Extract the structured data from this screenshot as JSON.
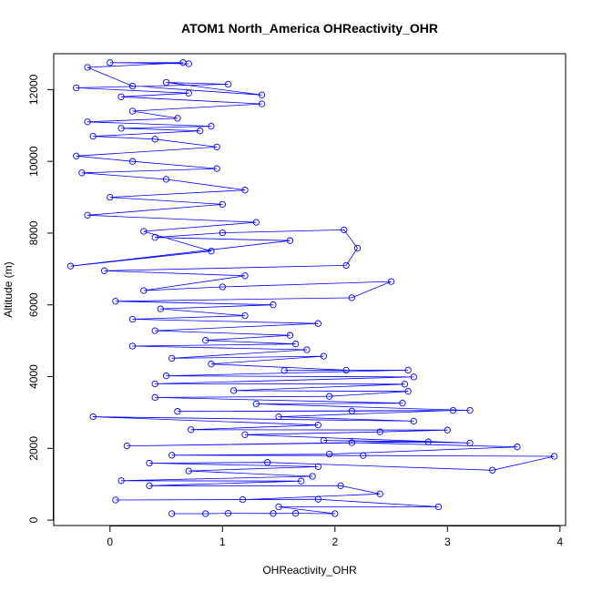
{
  "chart_data": {
    "type": "scatter",
    "title": "ATOM1 North_America OHReactivity_OHR",
    "xlabel": "OHReactivity_OHR",
    "ylabel": "Altitude (m)",
    "xlim": [
      -0.5,
      4.05
    ],
    "ylim": [
      -150,
      13000
    ],
    "x_ticks": [
      0,
      1,
      2,
      3,
      4
    ],
    "y_ticks": [
      0,
      2000,
      4000,
      6000,
      8000,
      10000,
      12000
    ],
    "grid": false,
    "series": [
      {
        "color": "#0000ff",
        "connected": true,
        "points": [
          [
            0.55,
            180
          ],
          [
            0.85,
            180
          ],
          [
            1.05,
            190
          ],
          [
            1.45,
            185
          ],
          [
            1.65,
            190
          ],
          [
            2.0,
            180
          ],
          [
            1.5,
            370
          ],
          [
            2.92,
            370
          ],
          [
            1.85,
            580
          ],
          [
            0.05,
            560
          ],
          [
            1.18,
            570
          ],
          [
            2.4,
            730
          ],
          [
            2.05,
            960
          ],
          [
            0.35,
            960
          ],
          [
            1.7,
            1090
          ],
          [
            0.1,
            1100
          ],
          [
            1.8,
            1220
          ],
          [
            0.7,
            1370
          ],
          [
            1.85,
            1490
          ],
          [
            0.35,
            1590
          ],
          [
            1.4,
            1610
          ],
          [
            3.4,
            1390
          ],
          [
            3.95,
            1780
          ],
          [
            2.25,
            1800
          ],
          [
            0.55,
            1810
          ],
          [
            1.95,
            1840
          ],
          [
            3.62,
            2040
          ],
          [
            2.15,
            2160
          ],
          [
            0.15,
            2070
          ],
          [
            2.83,
            2180
          ],
          [
            1.9,
            2220
          ],
          [
            3.2,
            2150
          ],
          [
            1.2,
            2380
          ],
          [
            2.4,
            2460
          ],
          [
            3.0,
            2510
          ],
          [
            0.72,
            2520
          ],
          [
            1.85,
            2650
          ],
          [
            -0.15,
            2880
          ],
          [
            2.7,
            2760
          ],
          [
            1.5,
            2880
          ],
          [
            3.05,
            3060
          ],
          [
            0.6,
            3030
          ],
          [
            2.15,
            3040
          ],
          [
            3.2,
            3060
          ],
          [
            1.3,
            3240
          ],
          [
            2.6,
            3260
          ],
          [
            0.4,
            3420
          ],
          [
            1.95,
            3450
          ],
          [
            2.65,
            3590
          ],
          [
            1.1,
            3610
          ],
          [
            2.62,
            3790
          ],
          [
            0.4,
            3800
          ],
          [
            2.7,
            3990
          ],
          [
            0.5,
            4020
          ],
          [
            2.65,
            4180
          ],
          [
            1.55,
            4170
          ],
          [
            2.1,
            4180
          ],
          [
            0.9,
            4350
          ],
          [
            1.9,
            4570
          ],
          [
            0.55,
            4510
          ],
          [
            1.75,
            4750
          ],
          [
            0.2,
            4850
          ],
          [
            1.65,
            4910
          ],
          [
            0.85,
            5010
          ],
          [
            1.6,
            5150
          ],
          [
            0.4,
            5280
          ],
          [
            1.85,
            5480
          ],
          [
            0.2,
            5600
          ],
          [
            1.2,
            5700
          ],
          [
            0.45,
            5890
          ],
          [
            1.45,
            6000
          ],
          [
            0.05,
            6100
          ],
          [
            2.15,
            6200
          ],
          [
            2.5,
            6650
          ],
          [
            1.0,
            6500
          ],
          [
            0.3,
            6400
          ],
          [
            1.2,
            6810
          ],
          [
            -0.05,
            6950
          ],
          [
            2.1,
            7100
          ],
          [
            2.2,
            7580
          ],
          [
            2.08,
            8090
          ],
          [
            1.0,
            8010
          ],
          [
            0.4,
            7880
          ],
          [
            1.6,
            7790
          ],
          [
            -0.35,
            7080
          ],
          [
            0.9,
            7500
          ],
          [
            0.3,
            8050
          ],
          [
            1.3,
            8300
          ],
          [
            -0.2,
            8500
          ],
          [
            1.0,
            8800
          ],
          [
            0.0,
            9000
          ],
          [
            1.2,
            9200
          ],
          [
            0.5,
            9500
          ],
          [
            -0.25,
            9680
          ],
          [
            0.95,
            9800
          ],
          [
            0.2,
            10000
          ],
          [
            -0.3,
            10150
          ],
          [
            0.95,
            10400
          ],
          [
            0.4,
            10620
          ],
          [
            -0.15,
            10700
          ],
          [
            0.8,
            10850
          ],
          [
            0.1,
            10920
          ],
          [
            0.9,
            10980
          ],
          [
            -0.2,
            11100
          ],
          [
            0.6,
            11200
          ],
          [
            0.2,
            11400
          ],
          [
            1.35,
            11600
          ],
          [
            0.1,
            11800
          ],
          [
            0.7,
            11900
          ],
          [
            -0.3,
            12050
          ],
          [
            1.05,
            12150
          ],
          [
            0.5,
            12200
          ],
          [
            1.35,
            11850
          ],
          [
            0.2,
            12100
          ],
          [
            -0.2,
            12620
          ],
          [
            0.65,
            12750
          ],
          [
            0.0,
            12750
          ],
          [
            0.7,
            12720
          ]
        ]
      }
    ]
  }
}
